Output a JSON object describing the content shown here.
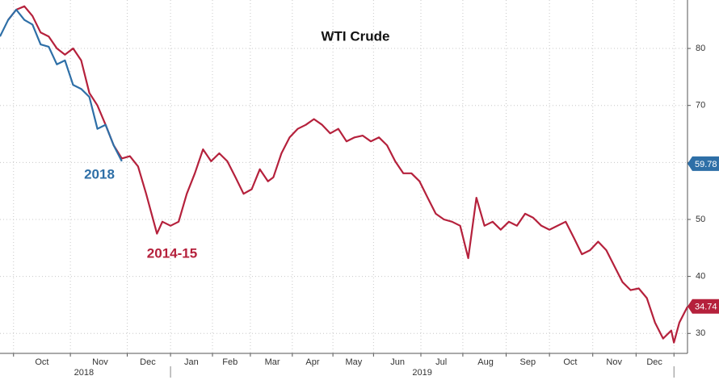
{
  "chart_data": {
    "type": "line",
    "title": "WTI Crude",
    "xlim": [
      0,
      254
    ],
    "ylim": [
      26.5,
      88.5
    ],
    "yticks": [
      30,
      40,
      50,
      60,
      70,
      80
    ],
    "xticks": [
      {
        "value": 15.5,
        "label": "Oct"
      },
      {
        "value": 37,
        "label": "Nov"
      },
      {
        "value": 54.6,
        "label": "Dec"
      },
      {
        "value": 70.7,
        "label": "Jan"
      },
      {
        "value": 85,
        "label": "Feb"
      },
      {
        "value": 100.6,
        "label": "Mar"
      },
      {
        "value": 115.5,
        "label": "Apr"
      },
      {
        "value": 130.7,
        "label": "May"
      },
      {
        "value": 146.9,
        "label": "Jun"
      },
      {
        "value": 163,
        "label": "Jul"
      },
      {
        "value": 179.4,
        "label": "Aug"
      },
      {
        "value": 195,
        "label": "Sep"
      },
      {
        "value": 210.7,
        "label": "Oct"
      },
      {
        "value": 226.9,
        "label": "Nov"
      },
      {
        "value": 241.8,
        "label": "Dec"
      }
    ],
    "xgrid": [
      5,
      26,
      47,
      63,
      78.5,
      92.5,
      108,
      123,
      138,
      155.5,
      171,
      187,
      203,
      219,
      235,
      249
    ],
    "year_labels": [
      {
        "value": 31,
        "label": "2018"
      },
      {
        "value": 156,
        "label": "2019"
      }
    ],
    "year_breaks": [
      63,
      249
    ],
    "grid": true,
    "series": [
      {
        "name": "2014-15",
        "color": "#b5213c",
        "last_value": 34.74,
        "x": [
          3,
          6,
          9,
          12,
          15,
          18,
          21,
          24,
          27,
          30,
          33,
          36,
          39,
          42,
          45,
          48,
          51,
          54,
          56,
          58,
          60,
          63,
          66,
          69,
          72,
          75,
          78,
          81,
          84,
          87,
          90,
          93,
          96,
          99,
          101,
          104,
          107,
          110,
          113,
          116,
          119,
          122,
          125,
          128,
          131,
          134,
          137,
          140,
          143,
          146,
          149,
          152,
          155,
          158,
          161,
          164,
          167,
          170,
          173,
          176,
          179,
          182,
          185,
          188,
          191,
          194,
          197,
          200,
          203,
          206,
          209,
          212,
          215,
          218,
          221,
          224,
          227,
          230,
          233,
          236,
          239,
          242,
          245,
          248,
          249,
          251,
          254
        ],
        "values": [
          85.0,
          86.8,
          87.4,
          85.7,
          82.8,
          82.1,
          80.0,
          78.9,
          80.0,
          77.9,
          72.2,
          70.0,
          66.6,
          63.0,
          60.7,
          61.1,
          59.3,
          54.5,
          51.0,
          47.5,
          49.6,
          48.9,
          49.6,
          54.5,
          58.1,
          62.3,
          60.2,
          61.6,
          60.2,
          57.4,
          54.5,
          55.3,
          58.8,
          56.7,
          57.4,
          61.6,
          64.4,
          65.9,
          66.6,
          67.6,
          66.6,
          65.1,
          65.9,
          63.7,
          64.4,
          64.7,
          63.7,
          64.4,
          63.0,
          60.2,
          58.1,
          58.1,
          56.7,
          53.8,
          51.0,
          50.0,
          49.6,
          48.9,
          43.2,
          53.8,
          48.9,
          49.6,
          48.2,
          49.6,
          48.9,
          51.0,
          50.3,
          48.9,
          48.2,
          48.9,
          49.6,
          46.8,
          43.9,
          44.6,
          46.1,
          44.6,
          41.8,
          39.0,
          37.6,
          37.9,
          36.2,
          31.9,
          29.1,
          30.5,
          28.4,
          31.9,
          34.7
        ]
      },
      {
        "name": "2018",
        "color": "#2e6fa7",
        "last_value": 59.78,
        "x": [
          0,
          3,
          6,
          9,
          12,
          15,
          18,
          21,
          24,
          27,
          30,
          33,
          36,
          39,
          42,
          45
        ],
        "values": [
          82.1,
          85.0,
          86.8,
          85.0,
          84.2,
          80.7,
          80.3,
          77.2,
          77.9,
          73.6,
          72.9,
          71.5,
          65.9,
          66.6,
          63.0,
          60.2
        ]
      }
    ]
  }
}
